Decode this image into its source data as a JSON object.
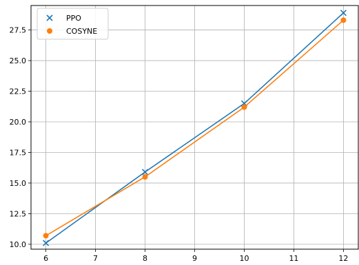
{
  "chart_data": {
    "type": "line",
    "title": "",
    "xlabel": "",
    "ylabel": "",
    "xlim": [
      5.7,
      12.3
    ],
    "ylim": [
      9.6,
      29.5
    ],
    "x_ticks": [
      "6",
      "7",
      "8",
      "9",
      "10",
      "11",
      "12"
    ],
    "y_ticks": [
      "10.0",
      "12.5",
      "15.0",
      "17.5",
      "20.0",
      "22.5",
      "25.0",
      "27.5"
    ],
    "grid": true,
    "legend_position": "top-left",
    "series": [
      {
        "name": "PPO",
        "marker": "x",
        "color": "#1f77b4",
        "x": [
          6,
          8,
          10,
          12
        ],
        "y": [
          10.1,
          15.9,
          21.5,
          28.9
        ]
      },
      {
        "name": "COSYNE",
        "marker": "circle",
        "color": "#ff7f0e",
        "x": [
          6,
          8,
          10,
          12
        ],
        "y": [
          10.7,
          15.5,
          21.2,
          28.3
        ]
      }
    ]
  }
}
